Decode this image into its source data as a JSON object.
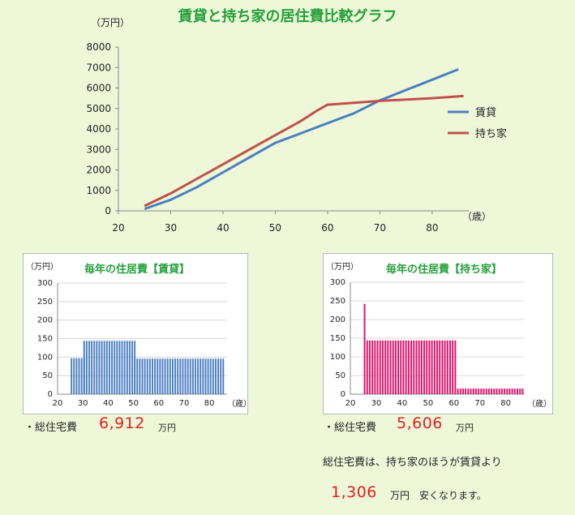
{
  "page": {
    "title": "賃貸と持ち家の居住費比較グラフ"
  },
  "chart_data": [
    {
      "type": "line",
      "title": "賃貸と持ち家の居住費比較グラフ",
      "yunit": "（万円）",
      "xunit": "（歳）",
      "xlim": [
        20,
        87
      ],
      "ylim": [
        0,
        8000
      ],
      "xticks": [
        20,
        30,
        40,
        50,
        60,
        70,
        80
      ],
      "yticks": [
        0,
        1000,
        2000,
        3000,
        4000,
        5000,
        6000,
        7000,
        8000
      ],
      "grid": false,
      "legend": "right",
      "series": [
        {
          "name": "賃貸",
          "color": "#4b7fc1",
          "points": [
            [
              25,
              97
            ],
            [
              30,
              542
            ],
            [
              35,
              1158
            ],
            [
              40,
              1880
            ],
            [
              45,
              2600
            ],
            [
              50,
              3320
            ],
            [
              55,
              3800
            ],
            [
              60,
              4281
            ],
            [
              65,
              4760
            ],
            [
              70,
              5395
            ],
            [
              75,
              5900
            ],
            [
              80,
              6405
            ],
            [
              85,
              6912
            ]
          ]
        },
        {
          "name": "持ち家",
          "color": "#c0504d",
          "points": [
            [
              25,
              242
            ],
            [
              30,
              855
            ],
            [
              35,
              1565
            ],
            [
              40,
              2275
            ],
            [
              45,
              2985
            ],
            [
              50,
              3695
            ],
            [
              55,
              4405
            ],
            [
              58,
              4900
            ],
            [
              60,
              5185
            ],
            [
              70,
              5370
            ],
            [
              80,
              5500
            ],
            [
              86,
              5606
            ]
          ]
        }
      ]
    },
    {
      "type": "bar",
      "title": "毎年の住居費【賃貸】",
      "yunit": "（万円）",
      "xunit": "（歳）",
      "color": "#4b7fc1",
      "xlim": [
        20,
        87
      ],
      "ylim": [
        0,
        300
      ],
      "xticks": [
        20,
        30,
        40,
        50,
        60,
        70,
        80
      ],
      "yticks": [
        0,
        50,
        100,
        150,
        200,
        250,
        300
      ],
      "segments": [
        {
          "from": 25,
          "to": 30,
          "value": 97
        },
        {
          "from": 30,
          "to": 50,
          "value": 144
        },
        {
          "from": 50,
          "to": 85,
          "value": 96
        }
      ]
    },
    {
      "type": "bar",
      "title": "毎年の住居費【持ち家】",
      "yunit": "（万円）",
      "xunit": "（歳）",
      "color": "#e0146e",
      "xlim": [
        20,
        87
      ],
      "ylim": [
        0,
        300
      ],
      "xticks": [
        20,
        30,
        40,
        50,
        60,
        70,
        80
      ],
      "yticks": [
        0,
        50,
        100,
        150,
        200,
        250,
        300
      ],
      "segments": [
        {
          "from": 25,
          "to": 25,
          "value": 242
        },
        {
          "from": 26,
          "to": 60,
          "value": 144
        },
        {
          "from": 61,
          "to": 86,
          "value": 15
        }
      ]
    }
  ],
  "summary": {
    "rent_label": "・総住宅費",
    "rent_value": "6,912",
    "rent_unit": "万円",
    "own_label": "・総住宅費",
    "own_value": "5,606",
    "own_unit": "万円",
    "note_line1": "総住宅費は、持ち家のほうが賃貸より",
    "diff_value": "1,306",
    "diff_unit": "万円",
    "diff_suffix": "安くなります。"
  }
}
